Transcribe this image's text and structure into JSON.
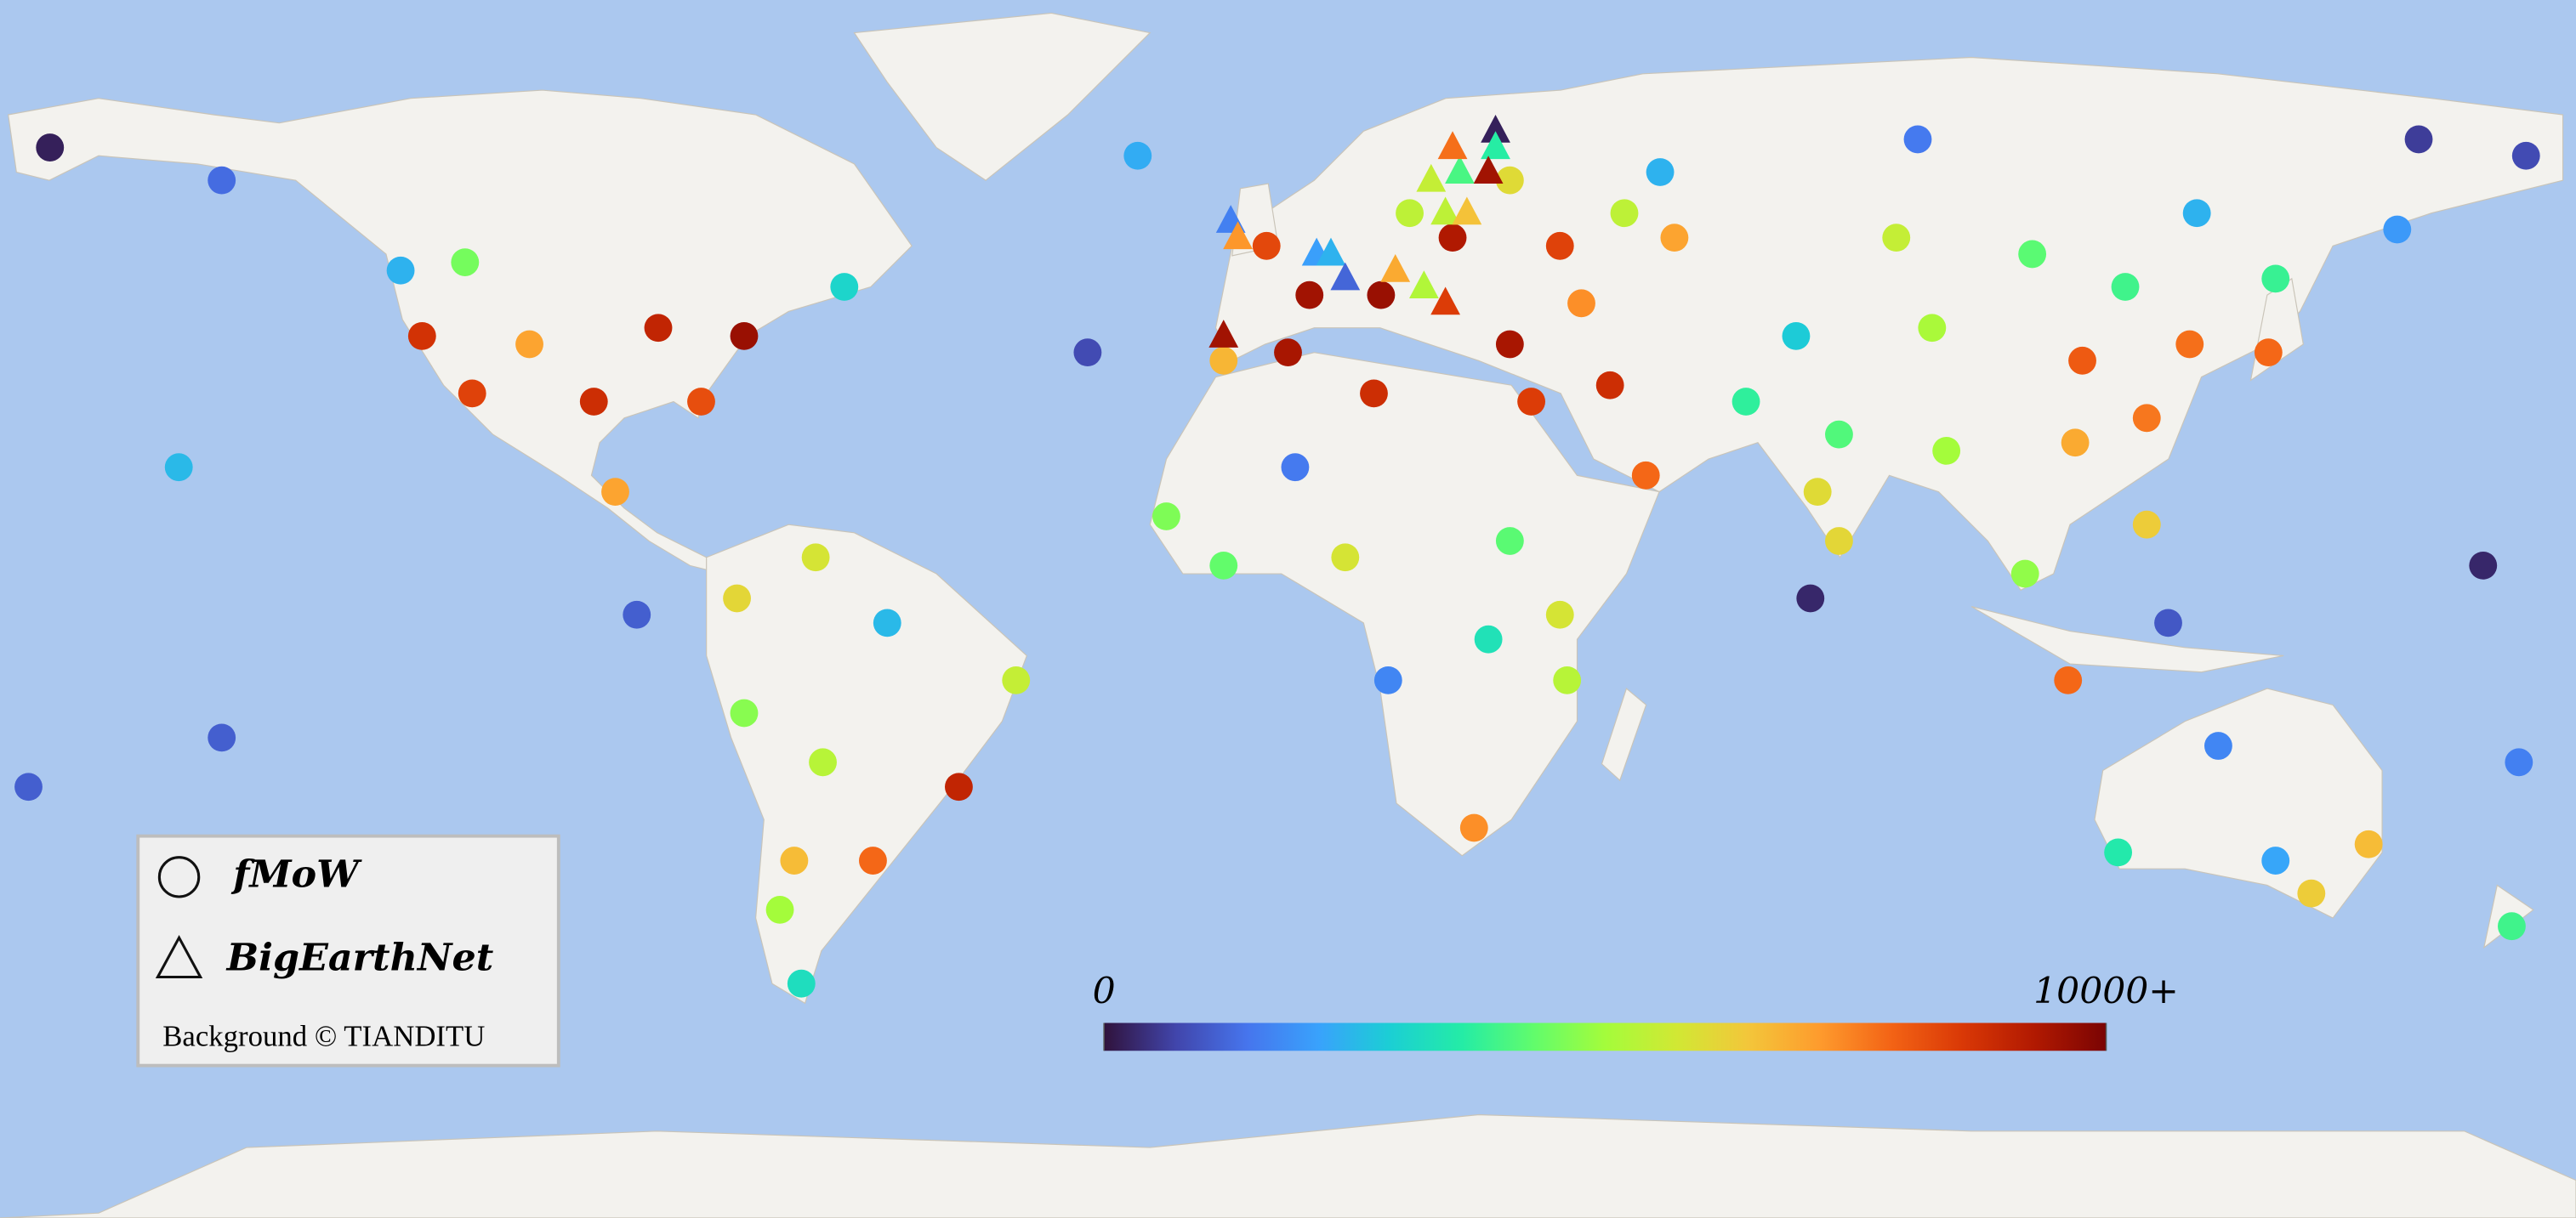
{
  "chart_data": {
    "type": "map",
    "series": [
      {
        "name": "fMoW",
        "marker": "circle",
        "lon": [
          -173,
          -149,
          -124,
          -115,
          -121,
          -106,
          -88,
          -76,
          -114,
          -97,
          -82,
          -62,
          -94,
          -155,
          -91,
          -149,
          -176,
          -77,
          -66,
          -56,
          -76,
          -38,
          -65,
          -46,
          -69,
          -58,
          -71,
          -68,
          -21,
          -28,
          -3,
          3,
          0,
          12,
          1,
          -17,
          -9,
          8,
          14,
          26,
          28,
          31,
          38,
          39,
          17,
          23,
          31,
          38,
          31,
          41,
          34,
          45,
          50,
          47,
          52,
          54,
          71,
          64,
          77,
          74,
          77,
          73,
          92,
          90,
          85,
          104,
          117,
          111,
          110,
          120,
          126,
          120,
          103,
          123,
          109,
          88,
          127,
          138,
          137,
          158,
          173,
          155,
          167,
          172,
          130,
          116,
          138,
          151,
          143,
          171,
          -9,
          13
        ],
        "lat": [
          61,
          57,
          46,
          47,
          38,
          37,
          39,
          38,
          31,
          30,
          30,
          44,
          19,
          22,
          4,
          -11,
          -17,
          6,
          11,
          3,
          -8,
          -4,
          -14,
          -17,
          -26,
          -26,
          -32,
          -41,
          60,
          36,
          49,
          43,
          36,
          31,
          22,
          16,
          10,
          11,
          -4,
          -22,
          1,
          13,
          4,
          -4,
          53,
          50,
          57,
          49,
          37,
          42,
          30,
          32,
          21,
          53,
          58,
          50,
          38,
          30,
          26,
          19,
          13,
          6,
          24,
          39,
          50,
          48,
          44,
          35,
          25,
          28,
          37,
          15,
          9,
          3,
          -4,
          62,
          53,
          45,
          36,
          62,
          60,
          51,
          10,
          -14,
          -12,
          -25,
          -26,
          -24,
          -30,
          -34,
          35,
          43
        ],
        "values": [
          200,
          1300,
          2400,
          4500,
          8700,
          7000,
          9000,
          9600,
          8400,
          8800,
          8200,
          3000,
          7000,
          2500,
          1100,
          1100,
          1100,
          6100,
          5800,
          2500,
          4700,
          5500,
          5300,
          9000,
          6600,
          7800,
          5000,
          3200,
          2300,
          800,
          8300,
          9500,
          9400,
          8800,
          1500,
          4600,
          4300,
          5800,
          1700,
          7300,
          3300,
          4200,
          5800,
          5300,
          5400,
          9300,
          6000,
          8400,
          9400,
          7300,
          8500,
          8800,
          7800,
          5400,
          2400,
          7000,
          2800,
          3700,
          4100,
          6000,
          6100,
          300,
          5000,
          5100,
          5500,
          4200,
          3900,
          8000,
          6900,
          7600,
          7700,
          6300,
          4800,
          1000,
          7800,
          1500,
          2400,
          3800,
          7800,
          600,
          800,
          2000,
          300,
          1600,
          1700,
          3500,
          2200,
          6600,
          6300,
          3900,
          6700,
          9600
        ]
      },
      {
        "name": "BigEarthNet",
        "marker": "triangle",
        "lon": [
          -8,
          -7,
          4,
          6,
          8,
          -9,
          15,
          19,
          22,
          20,
          24,
          23,
          29,
          29,
          28,
          22,
          25
        ],
        "lat": [
          52,
          50,
          48,
          48,
          45,
          38,
          46,
          44,
          42,
          57,
          58,
          61,
          63,
          61,
          58,
          53,
          53
        ],
        "values": [
          1600,
          7200,
          2100,
          2400,
          1200,
          9500,
          6900,
          5200,
          8500,
          5500,
          4000,
          7700,
          200,
          3600,
          9500,
          5400,
          6500
        ]
      }
    ],
    "colorbar": {
      "lim": [
        0,
        10000
      ],
      "ticks": [
        0,
        {
          "value": 10000,
          "label": "10000+"
        }
      ],
      "colormap": [
        "#30123b",
        "#4145ab",
        "#4675ed",
        "#39a2fc",
        "#1bcfd4",
        "#24eca6",
        "#61fc6c",
        "#a4fc3b",
        "#d1e834",
        "#f3c63a",
        "#fe9b2d",
        "#f36315",
        "#d93806",
        "#b11901",
        "#7a0403"
      ]
    },
    "attribution": "Background © TIANDITU"
  }
}
